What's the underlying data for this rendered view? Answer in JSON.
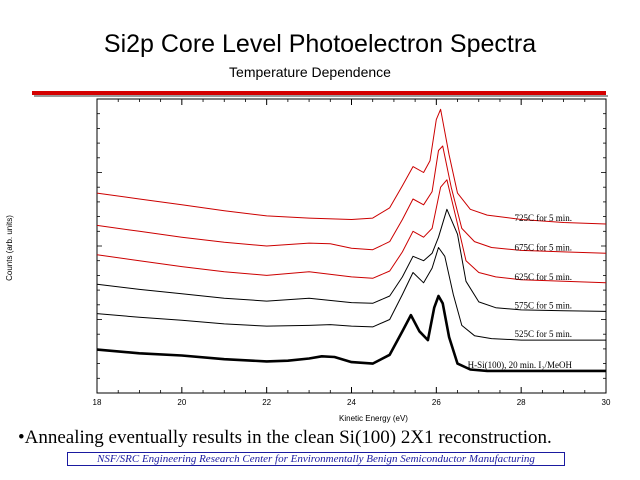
{
  "slide": {
    "title": "Si2p Core Level Photoelectron Spectra",
    "subtitle": "Temperature Dependence",
    "bullet": "•Annealing eventually results in the clean Si(100) 2X1 reconstruction.",
    "footer": "NSF/SRC Engineering Research Center for Environmentally Benign Semiconductor Manufacturing",
    "colors": {
      "rule": "#d40000",
      "footer": "#1a1aa0"
    }
  },
  "chart_data": {
    "type": "line",
    "xlabel": "Kinetic Energy (eV)",
    "ylabel": "Counts (arb. units)",
    "xlim": [
      18,
      30
    ],
    "xticks": [
      18,
      20,
      22,
      24,
      26,
      28,
      30
    ],
    "grid": false,
    "series": [
      {
        "name": "H-Si(100), 20 min. I₂/MeOH",
        "color": "#000000",
        "bold": true,
        "x": [
          18,
          19,
          20,
          21,
          22,
          22.5,
          23,
          23.3,
          23.6,
          24,
          24.5,
          24.9,
          25.2,
          25.4,
          25.6,
          25.8,
          25.95,
          26.05,
          26.15,
          26.3,
          26.5,
          26.8,
          27.2,
          28,
          29,
          30
        ],
        "y": [
          2.95,
          2.7,
          2.55,
          2.3,
          2.15,
          2.2,
          2.35,
          2.5,
          2.45,
          2.1,
          2.0,
          2.6,
          4.2,
          5.3,
          4.2,
          3.6,
          5.8,
          6.6,
          6.1,
          3.8,
          2.0,
          1.6,
          1.5,
          1.5,
          1.5,
          1.5
        ]
      },
      {
        "name": "525C for 5 min.",
        "color": "#000000",
        "x": [
          18,
          19,
          20,
          21,
          22,
          23,
          23.5,
          24,
          24.5,
          24.9,
          25.2,
          25.45,
          25.7,
          25.9,
          26.05,
          26.2,
          26.4,
          26.6,
          26.9,
          27.3,
          28,
          29,
          30
        ],
        "y": [
          5.4,
          5.15,
          4.95,
          4.7,
          4.55,
          4.6,
          4.65,
          4.55,
          4.5,
          5.0,
          6.7,
          8.2,
          7.5,
          8.5,
          9.9,
          9.3,
          6.7,
          4.6,
          3.9,
          3.7,
          3.6,
          3.6,
          3.6
        ]
      },
      {
        "name": "575C for 5 min.",
        "color": "#000000",
        "x": [
          18,
          19,
          20,
          21,
          22,
          23,
          24,
          24.5,
          24.9,
          25.2,
          25.45,
          25.7,
          25.9,
          26.05,
          26.25,
          26.5,
          26.7,
          27,
          27.4,
          28,
          29,
          30
        ],
        "y": [
          7.4,
          7.05,
          6.75,
          6.45,
          6.25,
          6.45,
          6.15,
          6.1,
          6.6,
          7.9,
          9.3,
          9.0,
          9.5,
          10.6,
          12.5,
          10.8,
          7.6,
          6.2,
          5.8,
          5.65,
          5.6,
          5.55
        ]
      },
      {
        "name": "625C for 5 min.",
        "color": "#cc0000",
        "x": [
          18,
          19,
          20,
          21,
          22,
          23,
          24,
          24.5,
          24.9,
          25.2,
          25.45,
          25.7,
          25.9,
          26.1,
          26.25,
          26.5,
          26.7,
          27,
          27.4,
          28,
          29,
          30
        ],
        "y": [
          9.4,
          9.0,
          8.6,
          8.25,
          8.0,
          8.25,
          7.9,
          7.8,
          8.3,
          9.6,
          11.0,
          10.6,
          11.2,
          14.0,
          14.5,
          11.5,
          9.0,
          8.2,
          7.9,
          7.7,
          7.6,
          7.5
        ]
      },
      {
        "name": "675C for 5 min.",
        "color": "#cc0000",
        "x": [
          18,
          19,
          20,
          21,
          22,
          23,
          23.5,
          24,
          24.5,
          24.9,
          25.2,
          25.45,
          25.7,
          25.9,
          26.05,
          26.15,
          26.35,
          26.6,
          26.9,
          27.3,
          28,
          29,
          30
        ],
        "y": [
          11.4,
          11.0,
          10.6,
          10.25,
          10.0,
          10.2,
          10.15,
          9.85,
          9.75,
          10.3,
          11.8,
          13.2,
          12.8,
          13.7,
          16.5,
          16.8,
          14.0,
          11.2,
          10.3,
          9.9,
          9.7,
          9.6,
          9.5
        ]
      },
      {
        "name": "725C for 5 min.",
        "color": "#cc0000",
        "x": [
          18,
          19,
          20,
          21,
          22,
          23,
          24,
          24.5,
          24.9,
          25.2,
          25.45,
          25.7,
          25.85,
          26.0,
          26.1,
          26.3,
          26.5,
          26.8,
          27.2,
          28,
          29,
          30
        ],
        "y": [
          13.6,
          13.2,
          12.8,
          12.4,
          12.05,
          11.9,
          11.8,
          11.9,
          12.6,
          14.1,
          15.4,
          15.0,
          15.8,
          18.6,
          19.3,
          16.2,
          13.6,
          12.5,
          12.1,
          11.8,
          11.6,
          11.5
        ]
      }
    ]
  }
}
